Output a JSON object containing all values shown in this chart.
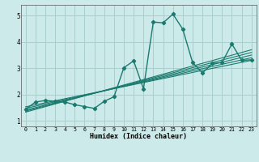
{
  "xlabel": "Humidex (Indice chaleur)",
  "bg_color": "#cceaea",
  "grid_color": "#aacfcf",
  "line_color": "#1a7a6e",
  "xlim": [
    -0.5,
    23.5
  ],
  "ylim": [
    0.8,
    5.4
  ],
  "xticks": [
    0,
    1,
    2,
    3,
    4,
    5,
    6,
    7,
    8,
    9,
    10,
    11,
    12,
    13,
    14,
    15,
    16,
    17,
    18,
    19,
    20,
    21,
    22,
    23
  ],
  "yticks": [
    1,
    2,
    3,
    4,
    5
  ],
  "main_data_x": [
    0,
    1,
    2,
    3,
    4,
    5,
    6,
    7,
    8,
    9,
    10,
    11,
    12,
    13,
    14,
    15,
    16,
    17,
    18,
    19,
    20,
    21,
    22,
    23
  ],
  "main_data_y": [
    1.45,
    1.72,
    1.78,
    1.75,
    1.72,
    1.62,
    1.55,
    1.48,
    1.75,
    1.92,
    3.02,
    3.28,
    2.22,
    4.75,
    4.72,
    5.05,
    4.48,
    3.22,
    2.82,
    3.18,
    3.22,
    3.92,
    3.3,
    3.32
  ],
  "trend_lines": [
    {
      "x": [
        0,
        23
      ],
      "y": [
        1.42,
        3.5
      ]
    },
    {
      "x": [
        0,
        23
      ],
      "y": [
        1.48,
        3.4
      ]
    },
    {
      "x": [
        0,
        23
      ],
      "y": [
        1.54,
        3.3
      ]
    },
    {
      "x": [
        0,
        23
      ],
      "y": [
        1.38,
        3.6
      ]
    },
    {
      "x": [
        0,
        23
      ],
      "y": [
        1.34,
        3.7
      ]
    }
  ]
}
